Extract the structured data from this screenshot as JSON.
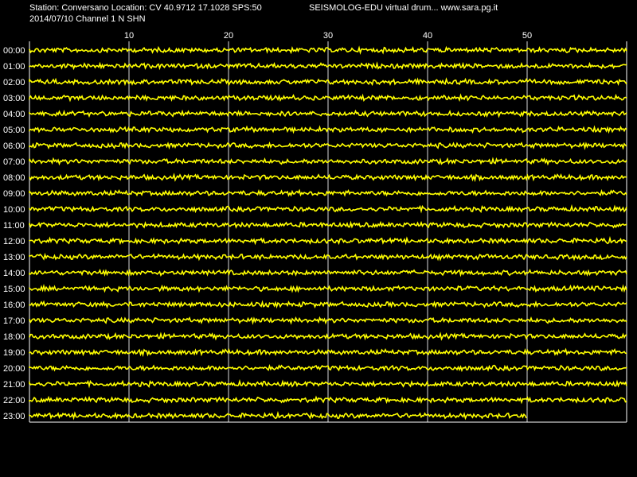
{
  "header": {
    "station_line": "Station: Conversano Location: CV 40.9712 17.1028 SPS:50",
    "title": "SEISMOLOG-EDU virtual drum... www.sara.pg.it",
    "date_line": "2014/07/10  Channel 1 N SHN"
  },
  "chart_data": {
    "type": "line",
    "x_ticks": [
      10,
      20,
      30,
      40,
      50
    ],
    "xlim": [
      0,
      60
    ],
    "rows": [
      "00:00",
      "01:00",
      "02:00",
      "03:00",
      "04:00",
      "05:00",
      "06:00",
      "07:00",
      "08:00",
      "09:00",
      "10:00",
      "11:00",
      "12:00",
      "13:00",
      "14:00",
      "15:00",
      "16:00",
      "17:00",
      "18:00",
      "19:00",
      "20:00",
      "21:00",
      "22:00",
      "23:00"
    ],
    "last_row_end_minute": 50,
    "grid": true
  },
  "colors": {
    "background": "#000000",
    "trace": "#ffff00",
    "grid": "#ffffff",
    "text": "#ffffff"
  }
}
